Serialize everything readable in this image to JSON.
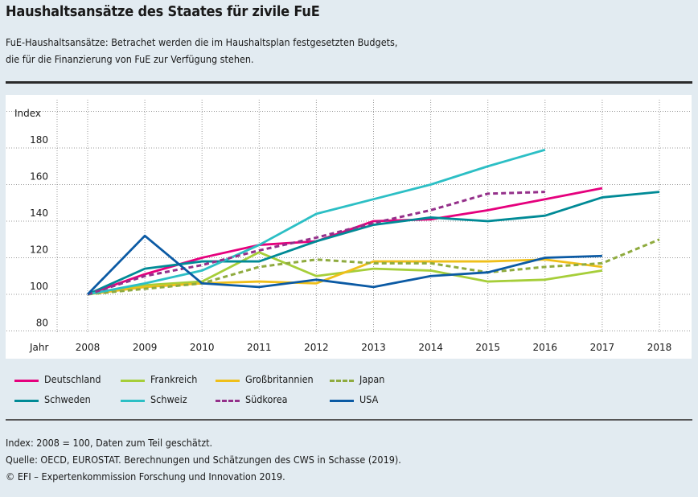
{
  "header": {
    "title": "Haushaltsansätze des Staates für zivile FuE",
    "subtitle_line1": "FuE-Haushaltsansätze: Betrachet werden die im Haushaltsplan festgesetzten Budgets,",
    "subtitle_line2": "die für die Finanzierung von FuE zur Verfügung stehen."
  },
  "chart_data": {
    "type": "line",
    "title": "",
    "xlabel": "Jahr",
    "ylabel": "Index",
    "x": [
      2008,
      2009,
      2010,
      2011,
      2012,
      2013,
      2014,
      2015,
      2016,
      2017,
      2018
    ],
    "y_ticks": [
      80,
      100,
      120,
      140,
      160,
      180
    ],
    "ylim": [
      80,
      200
    ],
    "grid": true,
    "legend_placement": "bottom",
    "series": [
      {
        "name": "Deutschland",
        "color": "#e5007d",
        "dashed": false,
        "values": [
          100,
          111,
          120,
          127,
          129,
          140,
          141,
          146,
          152,
          158,
          null
        ]
      },
      {
        "name": "Frankreich",
        "color": "#a6ce39",
        "dashed": false,
        "values": [
          100,
          105,
          107,
          123,
          110,
          114,
          113,
          107,
          108,
          113,
          null
        ]
      },
      {
        "name": "Großbritannien",
        "color": "#efbf1a",
        "dashed": false,
        "values": [
          100,
          104,
          106,
          107,
          106,
          118,
          118,
          118,
          119,
          115,
          null
        ]
      },
      {
        "name": "Japan",
        "color": "#8fab3f",
        "dashed": true,
        "values": [
          100,
          103,
          106,
          115,
          119,
          117,
          117,
          112,
          115,
          117,
          130
        ]
      },
      {
        "name": "Schweden",
        "color": "#008a96",
        "dashed": false,
        "values": [
          100,
          114,
          118,
          118,
          129,
          138,
          142,
          140,
          143,
          153,
          156
        ]
      },
      {
        "name": "Schweiz",
        "color": "#2cbfc5",
        "dashed": false,
        "values": [
          100,
          106,
          113,
          127,
          144,
          152,
          160,
          170,
          179,
          null,
          null
        ]
      },
      {
        "name": "Südkorea",
        "color": "#94308a",
        "dashed": true,
        "values": [
          100,
          110,
          116,
          124,
          131,
          139,
          146,
          155,
          156,
          null,
          null
        ]
      },
      {
        "name": "USA",
        "color": "#0b5aa4",
        "dashed": false,
        "values": [
          100,
          132,
          106,
          104,
          108,
          104,
          110,
          112,
          120,
          121,
          null
        ]
      }
    ]
  },
  "footer": {
    "note": "Index: 2008 = 100, Daten zum Teil geschätzt.",
    "source": "Quelle: OECD, EUROSTAT. Berechnungen und Schätzungen des CWS in Schasse (2019).",
    "copyright": "© EFI – Expertenkommission Forschung und Innovation 2019."
  }
}
